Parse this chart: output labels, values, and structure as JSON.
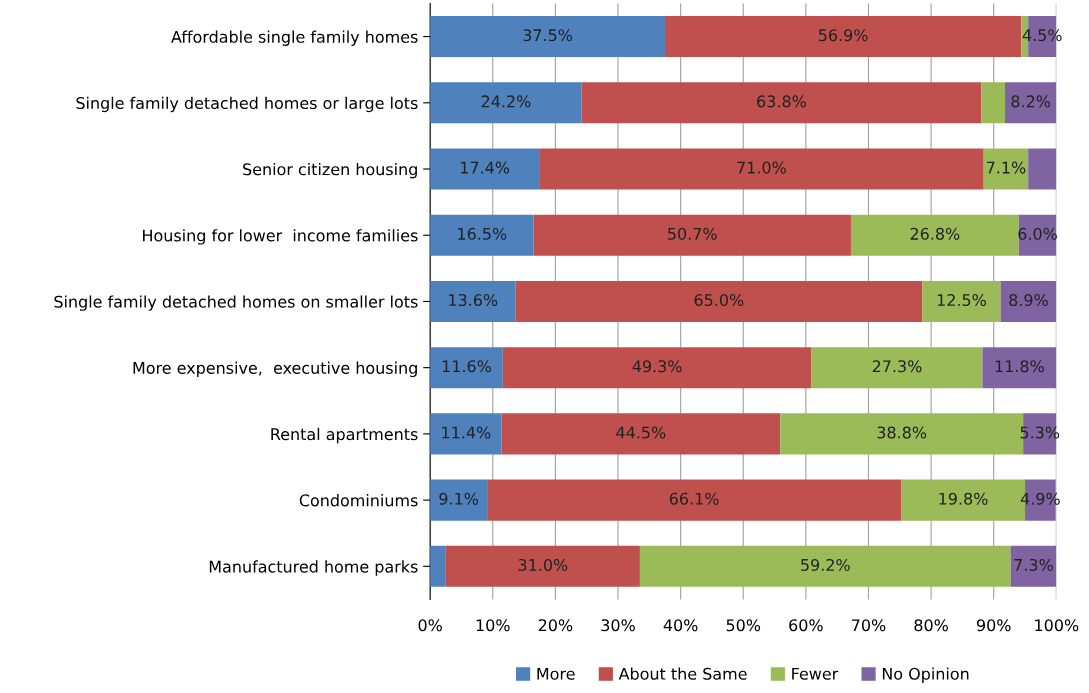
{
  "chart_data": {
    "type": "bar",
    "orientation": "horizontal",
    "stacked": true,
    "categories": [
      "Affordable single family homes",
      "Single family detached homes or large lots",
      "Senior citizen housing",
      "Housing for lower  income families",
      "Single family detached homes on smaller lots",
      "More expensive,  executive housing",
      "Rental apartments",
      "Condominiums",
      "Manufactured home parks"
    ],
    "series": [
      {
        "name": "More",
        "color": "#4f81bd",
        "values": [
          37.5,
          24.2,
          17.4,
          16.5,
          13.6,
          11.6,
          11.4,
          9.1,
          2.5
        ],
        "value_labels": [
          "37.5%",
          "24.2%",
          "17.4%",
          "16.5%",
          "13.6%",
          "11.6%",
          "11.4%",
          "9.1%",
          null
        ]
      },
      {
        "name": "About the Same",
        "color": "#c0504d",
        "values": [
          56.9,
          63.8,
          71.0,
          50.7,
          65.0,
          49.3,
          44.5,
          66.1,
          31.0
        ],
        "value_labels": [
          "56.9%",
          "63.8%",
          "71.0%",
          "50.7%",
          "65.0%",
          "49.3%",
          "44.5%",
          "66.1%",
          "31.0%"
        ]
      },
      {
        "name": "Fewer",
        "color": "#9bbb59",
        "values": [
          1.1,
          3.8,
          7.1,
          26.8,
          12.5,
          27.3,
          38.8,
          19.8,
          59.2
        ],
        "value_labels": [
          null,
          null,
          "7.1%",
          "26.8%",
          "12.5%",
          "27.3%",
          "38.8%",
          "19.8%",
          "59.2%"
        ]
      },
      {
        "name": "No Opinion",
        "color": "#8064a2",
        "values": [
          4.5,
          8.2,
          4.5,
          6.0,
          8.9,
          11.8,
          5.3,
          4.9,
          7.3
        ],
        "value_labels": [
          "4.5%",
          "8.2%",
          null,
          "6.0%",
          "8.9%",
          "11.8%",
          "5.3%",
          "4.9%",
          "7.3%"
        ]
      }
    ],
    "xlim": [
      0,
      100
    ],
    "xticks": [
      {
        "value": 0,
        "label": "0%"
      },
      {
        "value": 10,
        "label": "10%"
      },
      {
        "value": 20,
        "label": "20%"
      },
      {
        "value": 30,
        "label": "30%"
      },
      {
        "value": 40,
        "label": "40%"
      },
      {
        "value": 50,
        "label": "50%"
      },
      {
        "value": 60,
        "label": "60%"
      },
      {
        "value": 70,
        "label": "70%"
      },
      {
        "value": 80,
        "label": "80%"
      },
      {
        "value": 90,
        "label": "90%"
      },
      {
        "value": 100,
        "label": "100%"
      }
    ],
    "grid": "x",
    "legend": "bottom"
  }
}
